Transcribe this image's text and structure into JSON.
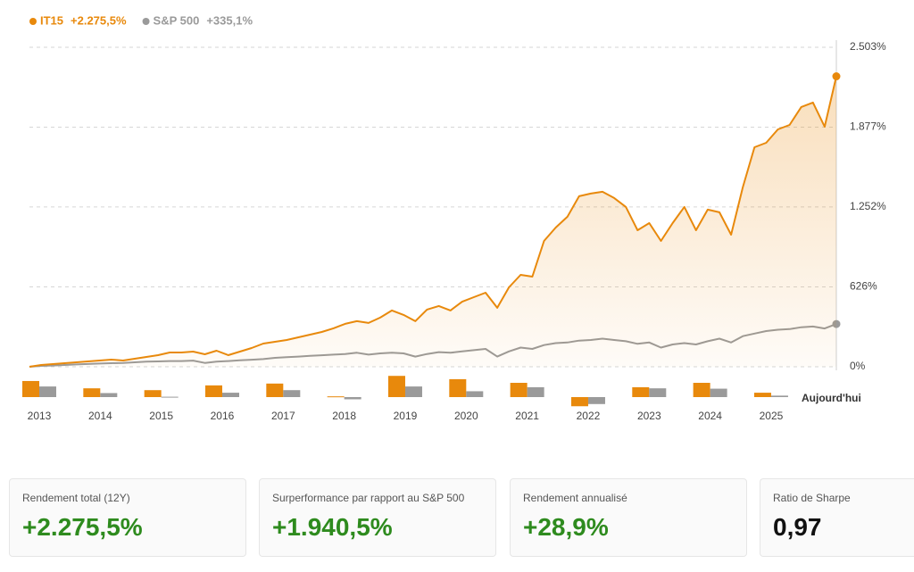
{
  "chart_data": [
    {
      "type": "line",
      "series": [
        {
          "name": "IT15",
          "total_label": "+2.275,5%",
          "color": "#e8890c",
          "values": [
            0,
            14,
            21,
            28,
            35,
            42,
            49,
            56,
            49,
            63,
            77,
            91,
            112,
            112,
            119,
            98,
            126,
            91,
            119,
            147,
            182,
            196,
            210,
            231,
            252,
            273,
            301,
            336,
            357,
            343,
            385,
            441,
            406,
            357,
            448,
            476,
            441,
            510,
            545,
            580,
            462,
            622,
            720,
            706,
            986,
            1091,
            1175,
            1336,
            1357,
            1371,
            1322,
            1252,
            1070,
            1126,
            986,
            1126,
            1252,
            1070,
            1231,
            1210,
            1035,
            1406,
            1720,
            1755,
            1860,
            1895,
            2035,
            2070,
            1881,
            2275.5
          ]
        },
        {
          "name": "S&P 500",
          "total_label": "+335,1%",
          "color": "#9a9a9a",
          "values": [
            0,
            7,
            10,
            14,
            18,
            22,
            25,
            28,
            30,
            35,
            40,
            42,
            45,
            45,
            48,
            30,
            40,
            45,
            50,
            55,
            60,
            70,
            75,
            80,
            85,
            90,
            95,
            100,
            110,
            95,
            105,
            110,
            105,
            80,
            100,
            115,
            110,
            120,
            130,
            140,
            80,
            120,
            150,
            140,
            170,
            185,
            190,
            205,
            210,
            220,
            210,
            200,
            180,
            190,
            150,
            175,
            185,
            175,
            200,
            220,
            190,
            240,
            260,
            280,
            290,
            295,
            310,
            315,
            300,
            335.1
          ]
        }
      ],
      "ylim": [
        0,
        2503
      ],
      "yticks": [
        {
          "value": 0,
          "label": "0%"
        },
        {
          "value": 626,
          "label": "626%"
        },
        {
          "value": 1252,
          "label": "1.252%"
        },
        {
          "value": 1877,
          "label": "1.877%"
        },
        {
          "value": 2503,
          "label": "2.503%"
        }
      ],
      "grid": true
    },
    {
      "type": "bar",
      "categories": [
        "2013",
        "2014",
        "2015",
        "2016",
        "2017",
        "2018",
        "2019",
        "2020",
        "2021",
        "2022",
        "2023",
        "2024",
        "2025"
      ],
      "series": [
        {
          "color": "#e8890c",
          "values": [
            44,
            24,
            19,
            32,
            37,
            2,
            58,
            49,
            39,
            -25,
            27,
            39,
            12
          ]
        },
        {
          "color": "#9a9a9a",
          "values": [
            29,
            11,
            1,
            12,
            19,
            -6,
            29,
            16,
            27,
            -19,
            24,
            23,
            4
          ]
        }
      ],
      "annotation": "Aujourd'hui"
    }
  ],
  "stats": [
    {
      "label": "Rendement total (12Y)",
      "value": "+2.275,5%"
    },
    {
      "label": "Surperformance par rapport au S&P 500",
      "value": "+1.940,5%"
    },
    {
      "label": "Rendement annualisé",
      "value": "+28,9%"
    },
    {
      "label": "Ratio de Sharpe",
      "value": "0,97"
    }
  ]
}
